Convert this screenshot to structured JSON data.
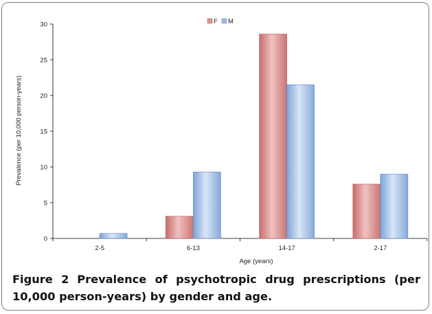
{
  "chart_data": {
    "type": "bar",
    "categories": [
      "2-5",
      "6-13",
      "14-17",
      "2-17"
    ],
    "series": [
      {
        "name": "F",
        "values": [
          0,
          3.1,
          28.6,
          7.6
        ],
        "color": "#d99594"
      },
      {
        "name": "M",
        "values": [
          0.7,
          9.3,
          21.5,
          9.0
        ],
        "color": "#9dbbe2"
      }
    ],
    "xlabel": "Age (years)",
    "ylabel": "Prevalence (per 10,000 person-years)",
    "ylim": [
      0,
      30
    ],
    "yticks": [
      "0",
      "5",
      "10",
      "15",
      "20",
      "25",
      "30"
    ],
    "legend_position": "top-center",
    "grid": false
  },
  "figure": {
    "label": "Figure 2",
    "caption": "Prevalence of psychotropic drug prescriptions (per 10,000 person-years) by gender and age."
  }
}
